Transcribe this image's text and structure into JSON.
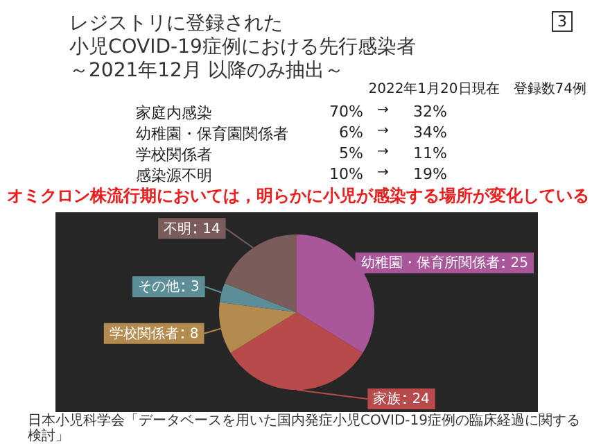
{
  "chart_data": {
    "type": "pie",
    "title": "レジストリに登録された",
    "subtitle": "小児COVID-19症例における先行感染者",
    "categories": [
      "幼稚園・保育所関係者",
      "家族",
      "学校関係者",
      "その他",
      "不明"
    ],
    "values": [
      25,
      24,
      8,
      3,
      14
    ],
    "colors": [
      "#a9569b",
      "#b94a4b",
      "#b38b4e",
      "#5b8e96",
      "#7a5c5a"
    ],
    "data_labels": true,
    "legend": false,
    "annotations": [
      "3",
      "2022年1月20日現在　登録数74例",
      "家庭内感染",
      "70%",
      "→",
      "32%",
      "幼稚園・保育園関係者",
      "6%",
      "→",
      "34%",
      "学校関係者",
      "5%",
      "→",
      "11%",
      "感染源不明",
      "10%",
      "→",
      "19%",
      "オミクロン株流行期においては，明らかに小児が感染する場所が変化している",
      "日本小児科学会「データベースを用いた国内発症小児COVID-19症例の臨床経過に関する検討」",
      "～2021年12月 以降のみ抽出～"
    ]
  }
}
